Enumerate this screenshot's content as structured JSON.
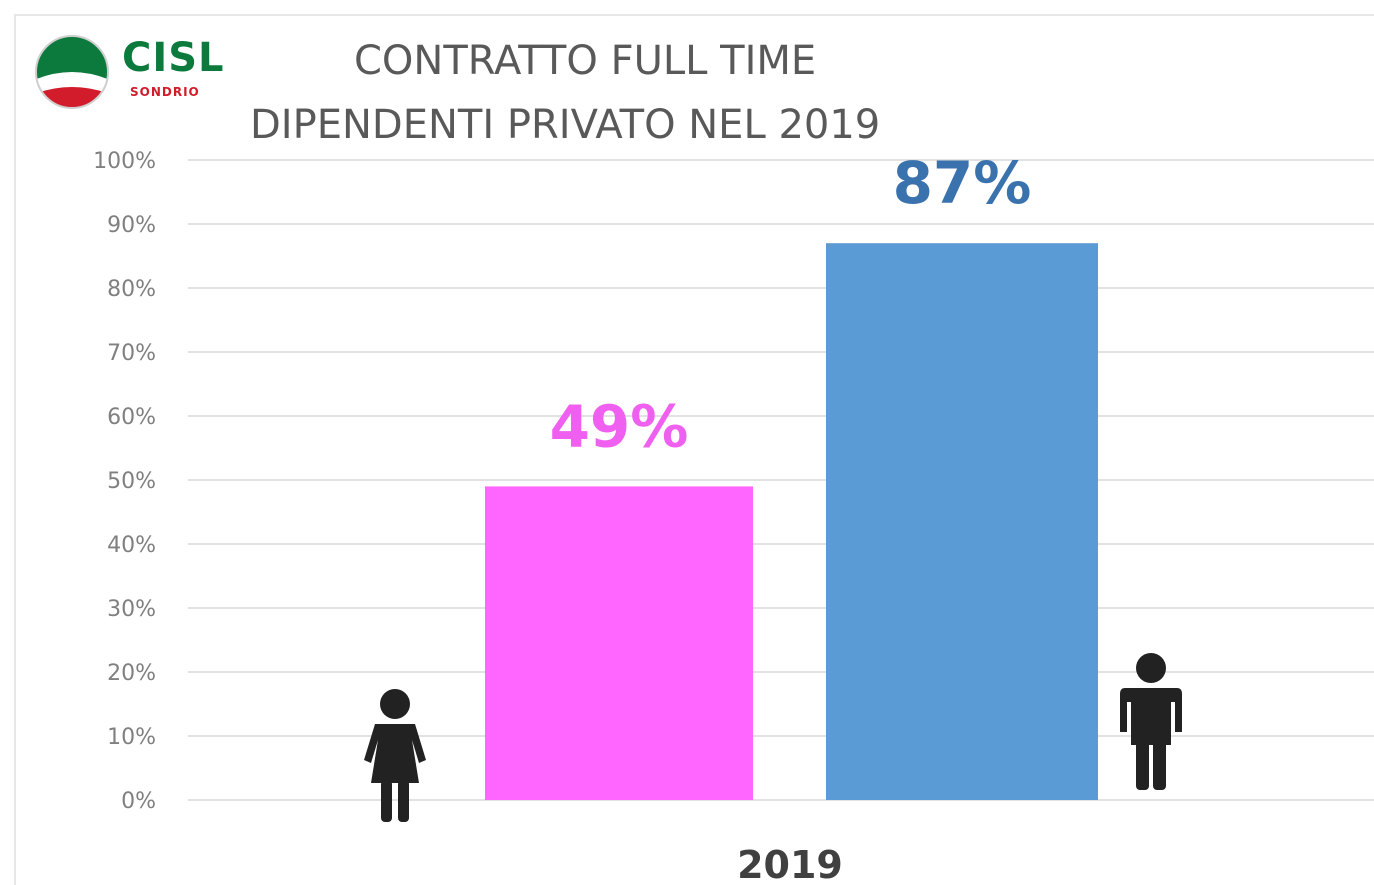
{
  "logo": {
    "name": "CISL",
    "sub": "SONDRIO"
  },
  "chart_data": {
    "type": "bar",
    "title_line1": "CONTRATTO FULL TIME",
    "title_line2": "DIPENDENTI PRIVATO NEL  2019",
    "categories": [
      "2019"
    ],
    "ylim": [
      0,
      100
    ],
    "yticks": [
      0,
      10,
      20,
      30,
      40,
      50,
      60,
      70,
      80,
      90,
      100
    ],
    "ytick_suffix": "%",
    "grid": true,
    "series": [
      {
        "icon": "female-icon",
        "values": [
          49
        ],
        "label": "49%",
        "color": "#ff66ff",
        "label_color": "#f060f0"
      },
      {
        "icon": "male-icon",
        "values": [
          87
        ],
        "label": "87%",
        "color": "#5b9bd5",
        "label_color": "#3a72ad"
      }
    ]
  }
}
